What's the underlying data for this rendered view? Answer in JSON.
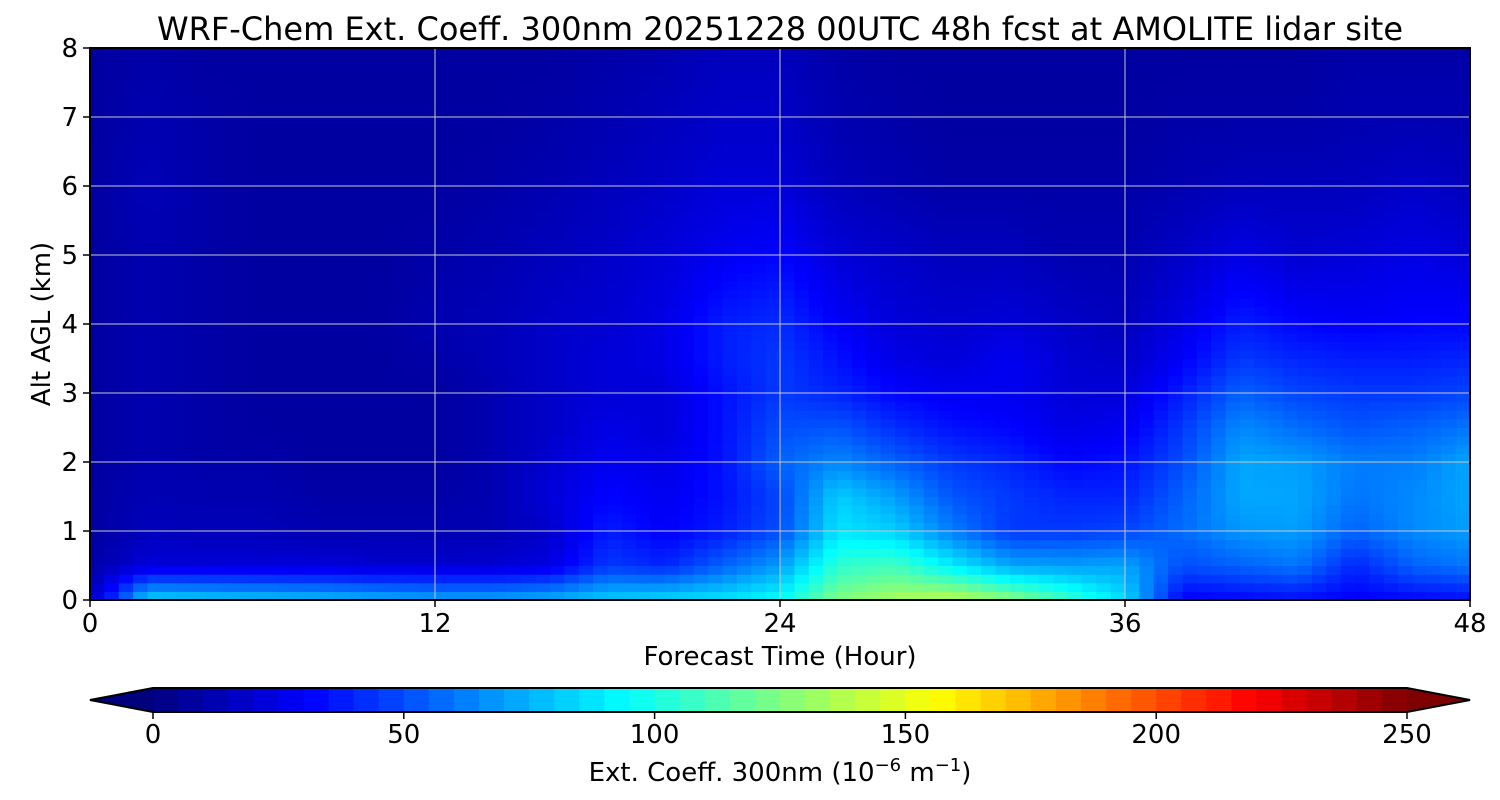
{
  "chart_data": {
    "type": "heatmap",
    "title": "WRF-Chem Ext. Coeff. 300nm  20251228 00UTC 48h fcst at AMOLITE lidar site",
    "xlabel": "Forecast Time (Hour)",
    "ylabel": "Alt AGL (km)",
    "xlim": [
      0,
      48
    ],
    "ylim": [
      0,
      8
    ],
    "xticks": [
      "0",
      "12",
      "24",
      "36",
      "48"
    ],
    "yticks": [
      "0",
      "1",
      "2",
      "3",
      "4",
      "5",
      "6",
      "7",
      "8"
    ],
    "grid": true,
    "z_units_note": "values are extinction coefficient at 300nm in 1e-6 m^-1",
    "x": [
      0,
      2,
      4,
      6,
      8,
      10,
      12,
      14,
      16,
      18,
      20,
      22,
      24,
      26,
      28,
      30,
      32,
      34,
      36,
      38,
      40,
      42,
      44,
      46,
      48
    ],
    "y": [
      0,
      0.5,
      1,
      1.5,
      2,
      2.5,
      3,
      3.5,
      4,
      5,
      6,
      7,
      8
    ],
    "z": [
      [
        15,
        85,
        82,
        80,
        78,
        75,
        72,
        72,
        75,
        82,
        85,
        88,
        95,
        125,
        135,
        140,
        128,
        108,
        85,
        30,
        32,
        34,
        30,
        32,
        34
      ],
      [
        10,
        22,
        22,
        22,
        22,
        20,
        20,
        20,
        24,
        45,
        40,
        55,
        70,
        105,
        110,
        90,
        72,
        70,
        72,
        50,
        55,
        60,
        40,
        55,
        60
      ],
      [
        8,
        15,
        14,
        14,
        12,
        12,
        12,
        13,
        18,
        38,
        30,
        38,
        50,
        88,
        82,
        62,
        45,
        45,
        48,
        58,
        68,
        70,
        55,
        65,
        70
      ],
      [
        8,
        13,
        12,
        12,
        10,
        10,
        10,
        12,
        22,
        32,
        28,
        35,
        48,
        82,
        70,
        52,
        45,
        40,
        40,
        55,
        72,
        72,
        60,
        65,
        72
      ],
      [
        8,
        12,
        10,
        10,
        8,
        8,
        8,
        12,
        20,
        28,
        25,
        35,
        55,
        65,
        55,
        45,
        40,
        32,
        35,
        50,
        72,
        70,
        62,
        62,
        72
      ],
      [
        8,
        12,
        10,
        8,
        8,
        8,
        8,
        12,
        18,
        25,
        22,
        35,
        50,
        52,
        42,
        35,
        32,
        25,
        28,
        45,
        65,
        58,
        52,
        55,
        60
      ],
      [
        8,
        12,
        10,
        8,
        8,
        8,
        8,
        12,
        18,
        22,
        22,
        35,
        45,
        40,
        32,
        28,
        28,
        22,
        22,
        38,
        55,
        48,
        45,
        45,
        48
      ],
      [
        8,
        12,
        10,
        8,
        8,
        8,
        10,
        14,
        18,
        22,
        25,
        38,
        45,
        35,
        25,
        22,
        28,
        20,
        18,
        30,
        45,
        40,
        38,
        38,
        40
      ],
      [
        8,
        12,
        10,
        8,
        8,
        8,
        12,
        14,
        18,
        20,
        25,
        38,
        42,
        30,
        22,
        20,
        22,
        18,
        15,
        25,
        38,
        32,
        30,
        32,
        32
      ],
      [
        8,
        12,
        10,
        8,
        8,
        8,
        10,
        12,
        15,
        18,
        22,
        28,
        32,
        22,
        18,
        15,
        15,
        12,
        12,
        18,
        25,
        20,
        22,
        25,
        22
      ],
      [
        8,
        14,
        10,
        8,
        8,
        8,
        8,
        10,
        12,
        15,
        18,
        22,
        22,
        15,
        12,
        10,
        10,
        10,
        10,
        12,
        15,
        15,
        15,
        18,
        15
      ],
      [
        8,
        12,
        10,
        8,
        8,
        8,
        8,
        8,
        10,
        12,
        15,
        18,
        18,
        12,
        10,
        8,
        8,
        8,
        8,
        10,
        10,
        10,
        12,
        12,
        12
      ],
      [
        8,
        10,
        8,
        8,
        8,
        8,
        8,
        8,
        8,
        10,
        12,
        15,
        15,
        10,
        8,
        8,
        8,
        8,
        8,
        8,
        8,
        8,
        10,
        10,
        10
      ]
    ],
    "colorbar": {
      "label": "Ext. Coeff. 300nm  (10",
      "label_exp1": "−6",
      "label_mid": " m",
      "label_exp2": "−1",
      "label_end": ")",
      "min": 0,
      "max": 250,
      "ticks": [
        "0",
        "50",
        "100",
        "150",
        "200",
        "250"
      ],
      "extend": "both",
      "colormap": "jet"
    }
  }
}
